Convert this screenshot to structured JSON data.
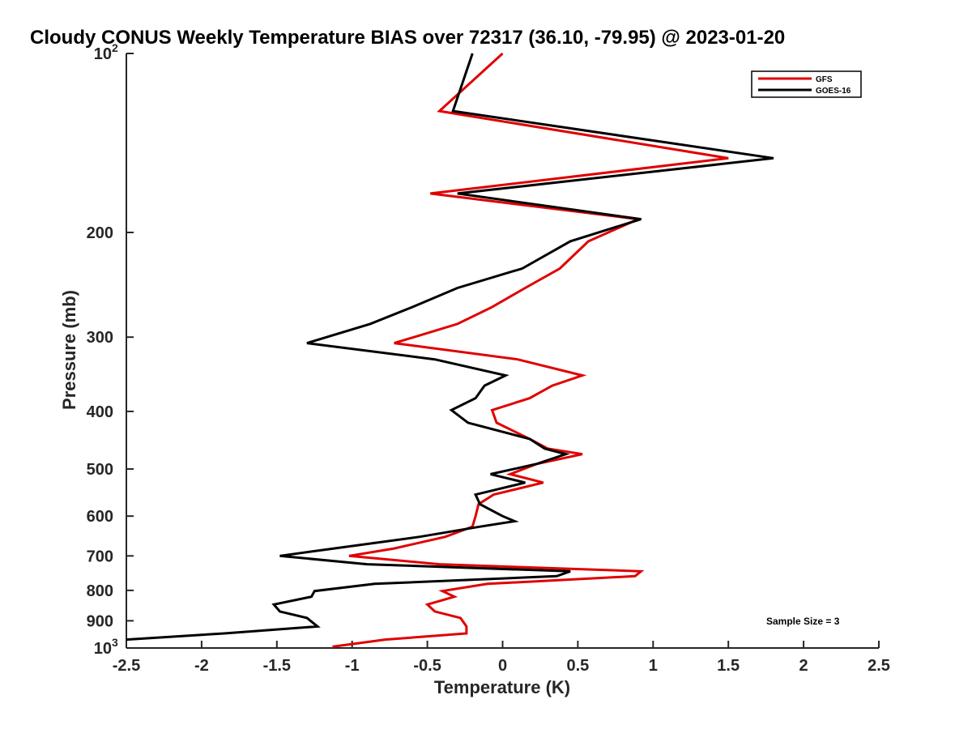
{
  "chart_data": {
    "type": "line",
    "title": "Cloudy CONUS Weekly Temperature BIAS over 72317 (36.10, -79.95) @ 2023-01-20",
    "xlabel": "Temperature (K)",
    "ylabel": "Pressure (mb)",
    "xlim": [
      -2.5,
      2.5
    ],
    "ylim": [
      100,
      1000
    ],
    "y_scale": "log",
    "y_reversed": true,
    "x_ticks": [
      "-2.5",
      "-2",
      "-1.5",
      "-1",
      "-0.5",
      "0",
      "0.5",
      "1",
      "1.5",
      "2",
      "2.5"
    ],
    "y_ticks": [
      {
        "value": 100,
        "base": "10",
        "exp": "2"
      },
      {
        "value": 200,
        "label": "200"
      },
      {
        "value": 300,
        "label": "300"
      },
      {
        "value": 400,
        "label": "400"
      },
      {
        "value": 500,
        "label": "500"
      },
      {
        "value": 600,
        "label": "600"
      },
      {
        "value": 700,
        "label": "700"
      },
      {
        "value": 800,
        "label": "800"
      },
      {
        "value": 900,
        "label": "900"
      },
      {
        "value": 1000,
        "base": "10",
        "exp": "3"
      }
    ],
    "annotation": "Sample Size = 3",
    "legend_position": "top-right",
    "grid": false,
    "series": [
      {
        "name": "GFS",
        "color": "#e00000",
        "points": [
          [
            0.0,
            100
          ],
          [
            -0.42,
            125
          ],
          [
            1.5,
            150
          ],
          [
            -0.48,
            172
          ],
          [
            0.9,
            190
          ],
          [
            0.57,
            207
          ],
          [
            0.38,
            230
          ],
          [
            0.15,
            248
          ],
          [
            -0.07,
            267
          ],
          [
            -0.3,
            285
          ],
          [
            -0.72,
            307
          ],
          [
            0.1,
            327
          ],
          [
            0.53,
            348
          ],
          [
            0.33,
            362
          ],
          [
            0.18,
            380
          ],
          [
            -0.07,
            398
          ],
          [
            -0.04,
            418
          ],
          [
            0.18,
            445
          ],
          [
            0.3,
            462
          ],
          [
            0.53,
            472
          ],
          [
            0.23,
            490
          ],
          [
            0.05,
            510
          ],
          [
            0.27,
            527
          ],
          [
            -0.06,
            552
          ],
          [
            -0.16,
            573
          ],
          [
            -0.18,
            600
          ],
          [
            -0.2,
            625
          ],
          [
            -0.38,
            650
          ],
          [
            -0.72,
            680
          ],
          [
            -1.02,
            700
          ],
          [
            -0.42,
            723
          ],
          [
            0.92,
            743
          ],
          [
            0.88,
            757
          ],
          [
            -0.1,
            780
          ],
          [
            -0.4,
            802
          ],
          [
            -0.32,
            820
          ],
          [
            -0.5,
            845
          ],
          [
            -0.45,
            868
          ],
          [
            -0.28,
            890
          ],
          [
            -0.24,
            920
          ],
          [
            -0.24,
            945
          ],
          [
            -0.78,
            968
          ],
          [
            -1.13,
            995
          ]
        ]
      },
      {
        "name": "GOES-16",
        "color": "#000000",
        "points": [
          [
            -0.2,
            100
          ],
          [
            -0.33,
            125
          ],
          [
            1.8,
            150
          ],
          [
            -0.3,
            172
          ],
          [
            0.92,
            190
          ],
          [
            0.45,
            207
          ],
          [
            0.13,
            230
          ],
          [
            -0.3,
            248
          ],
          [
            -0.6,
            267
          ],
          [
            -0.88,
            285
          ],
          [
            -1.3,
            307
          ],
          [
            -0.45,
            327
          ],
          [
            0.02,
            348
          ],
          [
            -0.12,
            362
          ],
          [
            -0.18,
            380
          ],
          [
            -0.34,
            398
          ],
          [
            -0.23,
            418
          ],
          [
            0.18,
            445
          ],
          [
            0.28,
            462
          ],
          [
            0.42,
            472
          ],
          [
            0.23,
            490
          ],
          [
            -0.08,
            510
          ],
          [
            0.15,
            527
          ],
          [
            -0.18,
            552
          ],
          [
            -0.15,
            573
          ],
          [
            0.0,
            600
          ],
          [
            0.08,
            612
          ],
          [
            -0.15,
            625
          ],
          [
            -0.55,
            650
          ],
          [
            -1.12,
            680
          ],
          [
            -1.48,
            700
          ],
          [
            -0.9,
            723
          ],
          [
            0.45,
            743
          ],
          [
            0.36,
            757
          ],
          [
            -0.85,
            780
          ],
          [
            -1.25,
            802
          ],
          [
            -1.27,
            820
          ],
          [
            -1.52,
            845
          ],
          [
            -1.48,
            868
          ],
          [
            -1.3,
            890
          ],
          [
            -1.23,
            920
          ],
          [
            -1.85,
            945
          ],
          [
            -2.5,
            968
          ]
        ]
      }
    ]
  }
}
